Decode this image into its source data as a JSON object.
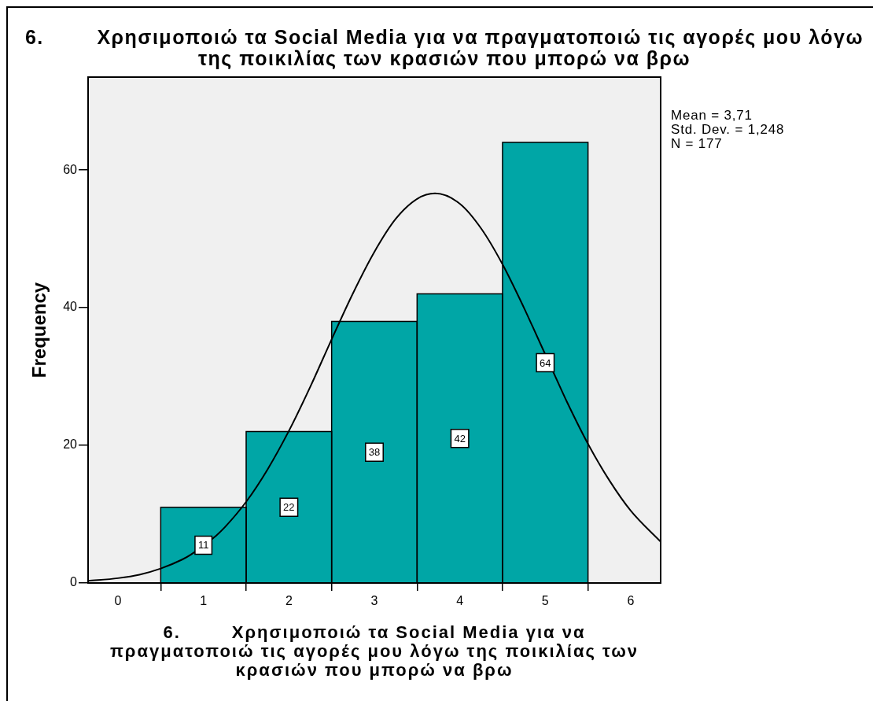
{
  "chart_data": {
    "type": "histogram",
    "title": "6.        Χρησιμοποιώ τα Social Media για να πραγματοποιώ τις αγορές μου λόγω της ποικιλίας των κρασιών που μπορώ να βρω",
    "xlabel": "6.        Χρησιμοποιώ τα Social Media για να πραγματοποιώ τις αγορές μου λόγω της ποικιλίας των κρασιών που μπορώ να βρω",
    "ylabel": "Frequency",
    "annotations": [
      "Mean = 3,71",
      "Std. Dev. = 1,248",
      "N = 177"
    ],
    "bins": [
      0.5,
      1.5,
      2.5,
      3.5,
      4.5,
      5.5
    ],
    "series": [
      {
        "values": [
          11,
          22,
          38,
          42,
          64
        ],
        "value_labels": [
          "11",
          "22",
          "38",
          "42",
          "64"
        ],
        "color": "#00a6a6"
      },
      {
        "type": "line",
        "color": "#000000",
        "x": [
          -0.35,
          0,
          0.25,
          0.5,
          0.75,
          0.85,
          1.15,
          1.25,
          1.5,
          1.75,
          2,
          2.25,
          2.5,
          2.75,
          3,
          3.25,
          3.5,
          3.71,
          4,
          4.25,
          4.5,
          4.75,
          4.85,
          5.15,
          5.25,
          5.5,
          5.75,
          6,
          6.35
        ],
        "values": [
          0.3,
          0.7,
          1.2,
          2.1,
          3.4,
          4.1,
          6.9,
          8.1,
          11.8,
          16.5,
          22.1,
          28.5,
          35.4,
          42.1,
          48.1,
          52.9,
          55.8,
          56.6,
          55.1,
          51.5,
          46.3,
          40.0,
          37.3,
          29.1,
          26.4,
          20.2,
          14.9,
          10.5,
          6.0
        ]
      }
    ],
    "xlim": [
      -0.35,
      6.35
    ],
    "ylim": [
      0,
      73.5
    ],
    "xticks": [
      0,
      1,
      2,
      3,
      4,
      5,
      6
    ],
    "yticks": [
      0,
      20,
      40,
      60
    ]
  }
}
